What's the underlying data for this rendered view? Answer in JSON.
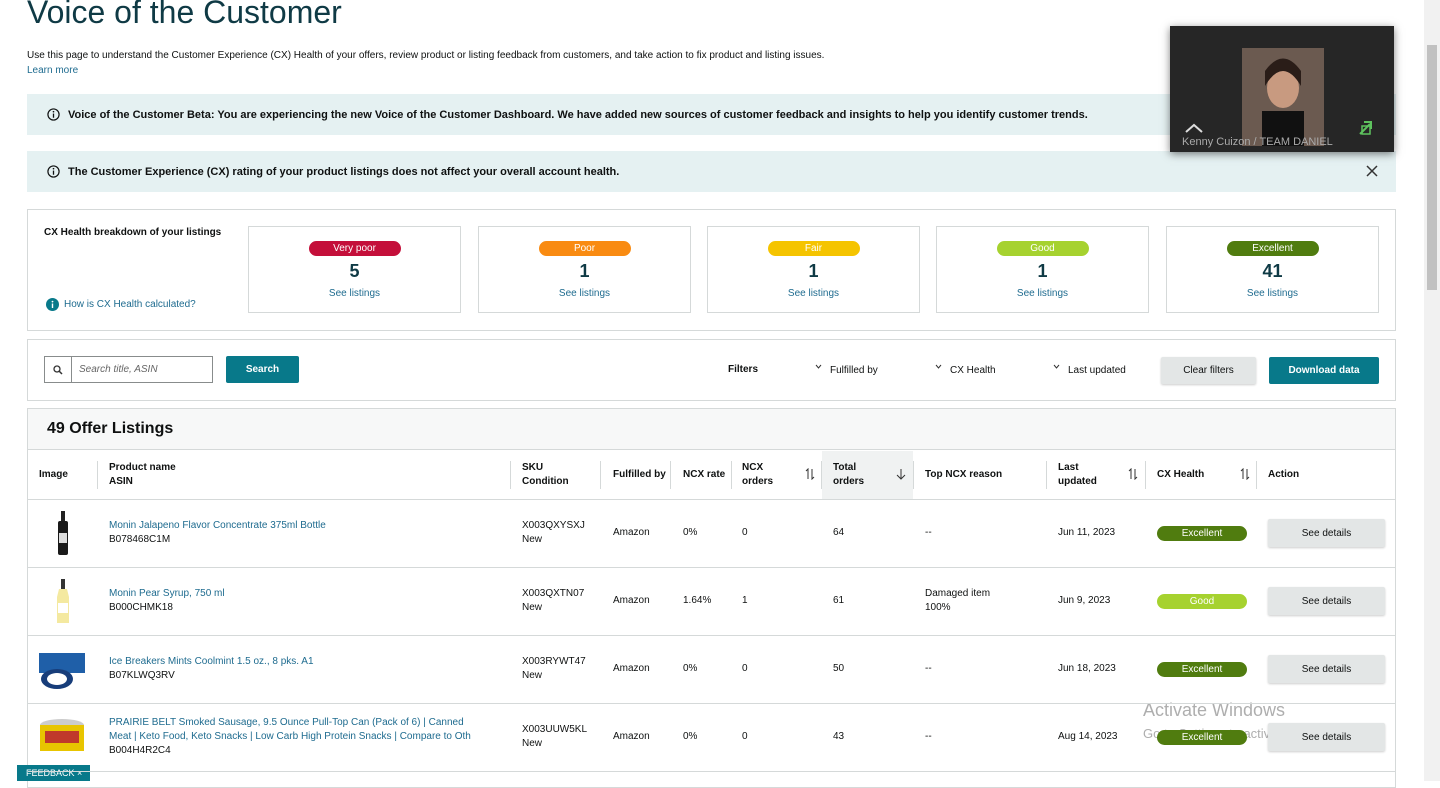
{
  "header": {
    "title": "Voice of the Customer",
    "description": "Use this page to understand the Customer Experience (CX) Health of your offers, review product or listing feedback from customers, and take action to fix product and listing issues.",
    "learn_more": "Learn more"
  },
  "banners": [
    {
      "text": "Voice of the Customer Beta: You are experiencing the new Voice of the Customer Dashboard. We have added new sources of customer feedback and insights to help you identify customer trends."
    },
    {
      "text": "The Customer Experience (CX) rating of your product listings does not affect your overall account health."
    }
  ],
  "cx_health": {
    "title": "CX Health breakdown of your listings",
    "help": "How is CX Health calculated?",
    "cards": [
      {
        "label": "Very poor",
        "count": "5",
        "link": "See listings",
        "color": "#c40f3a"
      },
      {
        "label": "Poor",
        "count": "1",
        "link": "See listings",
        "color": "#f98b12"
      },
      {
        "label": "Fair",
        "count": "1",
        "link": "See listings",
        "color": "#f5c400"
      },
      {
        "label": "Good",
        "count": "1",
        "link": "See listings",
        "color": "#a6d22f"
      },
      {
        "label": "Excellent",
        "count": "41",
        "link": "See listings",
        "color": "#507c0f"
      }
    ]
  },
  "filters": {
    "search_placeholder": "Search title, ASIN",
    "search_button": "Search",
    "label": "Filters",
    "dropdowns": [
      "Fulfilled by",
      "CX Health",
      "Last updated"
    ],
    "clear": "Clear filters",
    "download": "Download data"
  },
  "table": {
    "title": "49 Offer Listings",
    "columns": [
      [
        "Image"
      ],
      [
        "Product name",
        "ASIN"
      ],
      [
        "SKU",
        "Condition"
      ],
      [
        "Fulfilled by"
      ],
      [
        "NCX rate"
      ],
      [
        "NCX",
        "orders"
      ],
      [
        "Total",
        "orders"
      ],
      [
        "Top NCX reason"
      ],
      [
        "Last",
        "updated"
      ],
      [
        "CX Health"
      ],
      [
        "Action"
      ]
    ],
    "rows": [
      {
        "name": [
          "Monin Jalapeno Flavor Concentrate 375ml Bottle"
        ],
        "asin": "B078468C1M",
        "sku": "X003QXYSXJ",
        "condition": "New",
        "fulfilled": "Amazon",
        "ncx_rate": "0%",
        "ncx_orders": "0",
        "total_orders": "64",
        "reason": [
          "--"
        ],
        "updated": "Jun 11, 2023",
        "health": "Excellent",
        "health_color": "#507c0f",
        "action": "See details"
      },
      {
        "name": [
          "Monin Pear Syrup, 750 ml"
        ],
        "asin": "B000CHMK18",
        "sku": "X003QXTN07",
        "condition": "New",
        "fulfilled": "Amazon",
        "ncx_rate": "1.64%",
        "ncx_orders": "1",
        "total_orders": "61",
        "reason": [
          "Damaged item",
          "100%"
        ],
        "updated": "Jun 9, 2023",
        "health": "Good",
        "health_color": "#a6d22f",
        "action": "See details"
      },
      {
        "name": [
          "Ice Breakers Mints Coolmint 1.5 oz., 8 pks. A1"
        ],
        "asin": "B07KLWQ3RV",
        "sku": "X003RYWT47",
        "condition": "New",
        "fulfilled": "Amazon",
        "ncx_rate": "0%",
        "ncx_orders": "0",
        "total_orders": "50",
        "reason": [
          "--"
        ],
        "updated": "Jun 18, 2023",
        "health": "Excellent",
        "health_color": "#507c0f",
        "action": "See details"
      },
      {
        "name": [
          "PRAIRIE BELT Smoked Sausage, 9.5 Ounce Pull-Top Can (Pack of 6) | Canned",
          "Meat | Keto Food, Keto Snacks | Low Carb High Protein Snacks | Compare to Oth"
        ],
        "asin": "B004H4R2C4",
        "sku": "X003UUW5KL",
        "condition": "New",
        "fulfilled": "Amazon",
        "ncx_rate": "0%",
        "ncx_orders": "0",
        "total_orders": "43",
        "reason": [
          "--"
        ],
        "updated": "Aug 14, 2023",
        "health": "Excellent",
        "health_color": "#507c0f",
        "action": "See details"
      }
    ]
  },
  "video": {
    "name": "Kenny Cuizon / TEAM DANIEL"
  },
  "watermark": {
    "title": "Activate Windows",
    "subtitle": "Go to Settings to activate Windows."
  },
  "feedback": "FEEDBACK"
}
